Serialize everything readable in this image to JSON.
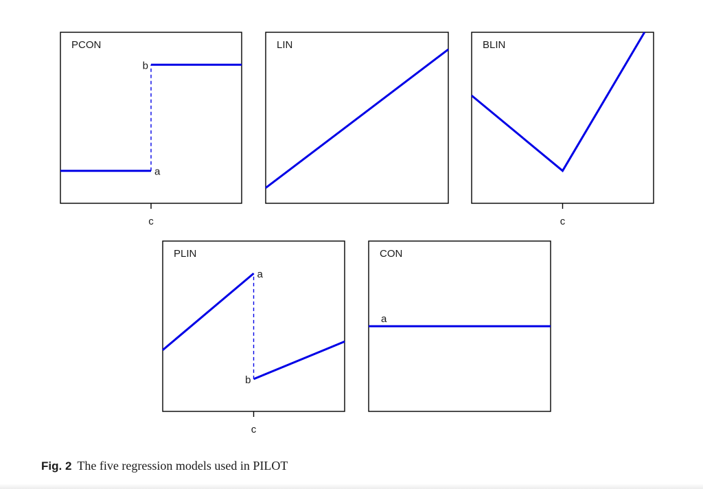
{
  "caption": {
    "label": "Fig. 2",
    "text": "The five regression models used in PILOT"
  },
  "colors": {
    "model_line": "#0000e6",
    "frame": "#000000",
    "text": "#1a1a1a"
  },
  "panels": [
    {
      "title": "PCON",
      "split_tick": "c",
      "point_labels": [
        "b",
        "a"
      ]
    },
    {
      "title": "LIN",
      "split_tick": "",
      "point_labels": []
    },
    {
      "title": "BLIN",
      "split_tick": "c",
      "point_labels": []
    },
    {
      "title": "PLIN",
      "split_tick": "c",
      "point_labels": [
        "a",
        "b"
      ]
    },
    {
      "title": "CON",
      "split_tick": "",
      "point_labels": [
        "a"
      ]
    }
  ],
  "chart_data": [
    {
      "type": "line",
      "title": "PCON",
      "xlim": [
        0,
        1
      ],
      "ylim": [
        0,
        1
      ],
      "split_at": 0.5,
      "series": [
        {
          "x": [
            0,
            0.5
          ],
          "y": [
            0.19,
            0.19
          ]
        },
        {
          "x": [
            0.5,
            1
          ],
          "y": [
            0.81,
            0.81
          ]
        }
      ],
      "jump": {
        "x": 0.5,
        "y": [
          0.19,
          0.81
        ]
      },
      "point_labels": [
        {
          "text": "b",
          "x": 0.5,
          "y": 0.81
        },
        {
          "text": "a",
          "x": 0.5,
          "y": 0.19
        }
      ],
      "x_ticks": [
        {
          "x": 0.5,
          "label": "c"
        }
      ]
    },
    {
      "type": "line",
      "title": "LIN",
      "xlim": [
        0,
        1
      ],
      "ylim": [
        0,
        1
      ],
      "series": [
        {
          "x": [
            0,
            1
          ],
          "y": [
            0.09,
            0.9
          ]
        }
      ],
      "x_ticks": []
    },
    {
      "type": "line",
      "title": "BLIN",
      "xlim": [
        0,
        1
      ],
      "ylim": [
        0,
        1
      ],
      "split_at": 0.5,
      "series": [
        {
          "x": [
            0,
            0.5,
            0.95
          ],
          "y": [
            0.63,
            0.19,
            1.0
          ]
        }
      ],
      "x_ticks": [
        {
          "x": 0.5,
          "label": "c"
        }
      ]
    },
    {
      "type": "line",
      "title": "PLIN",
      "xlim": [
        0,
        1
      ],
      "ylim": [
        0,
        1
      ],
      "split_at": 0.5,
      "series": [
        {
          "x": [
            0,
            0.5
          ],
          "y": [
            0.36,
            0.81
          ]
        },
        {
          "x": [
            0.5,
            1
          ],
          "y": [
            0.19,
            0.41
          ]
        }
      ],
      "jump": {
        "x": 0.5,
        "y": [
          0.19,
          0.81
        ]
      },
      "point_labels": [
        {
          "text": "a",
          "x": 0.5,
          "y": 0.81
        },
        {
          "text": "b",
          "x": 0.5,
          "y": 0.19
        }
      ],
      "x_ticks": [
        {
          "x": 0.5,
          "label": "c"
        }
      ]
    },
    {
      "type": "line",
      "title": "CON",
      "xlim": [
        0,
        1
      ],
      "ylim": [
        0,
        1
      ],
      "series": [
        {
          "x": [
            0,
            1
          ],
          "y": [
            0.5,
            0.5
          ]
        }
      ],
      "point_labels": [
        {
          "text": "a",
          "x": 0.0,
          "y": 0.5
        }
      ],
      "x_ticks": []
    }
  ]
}
